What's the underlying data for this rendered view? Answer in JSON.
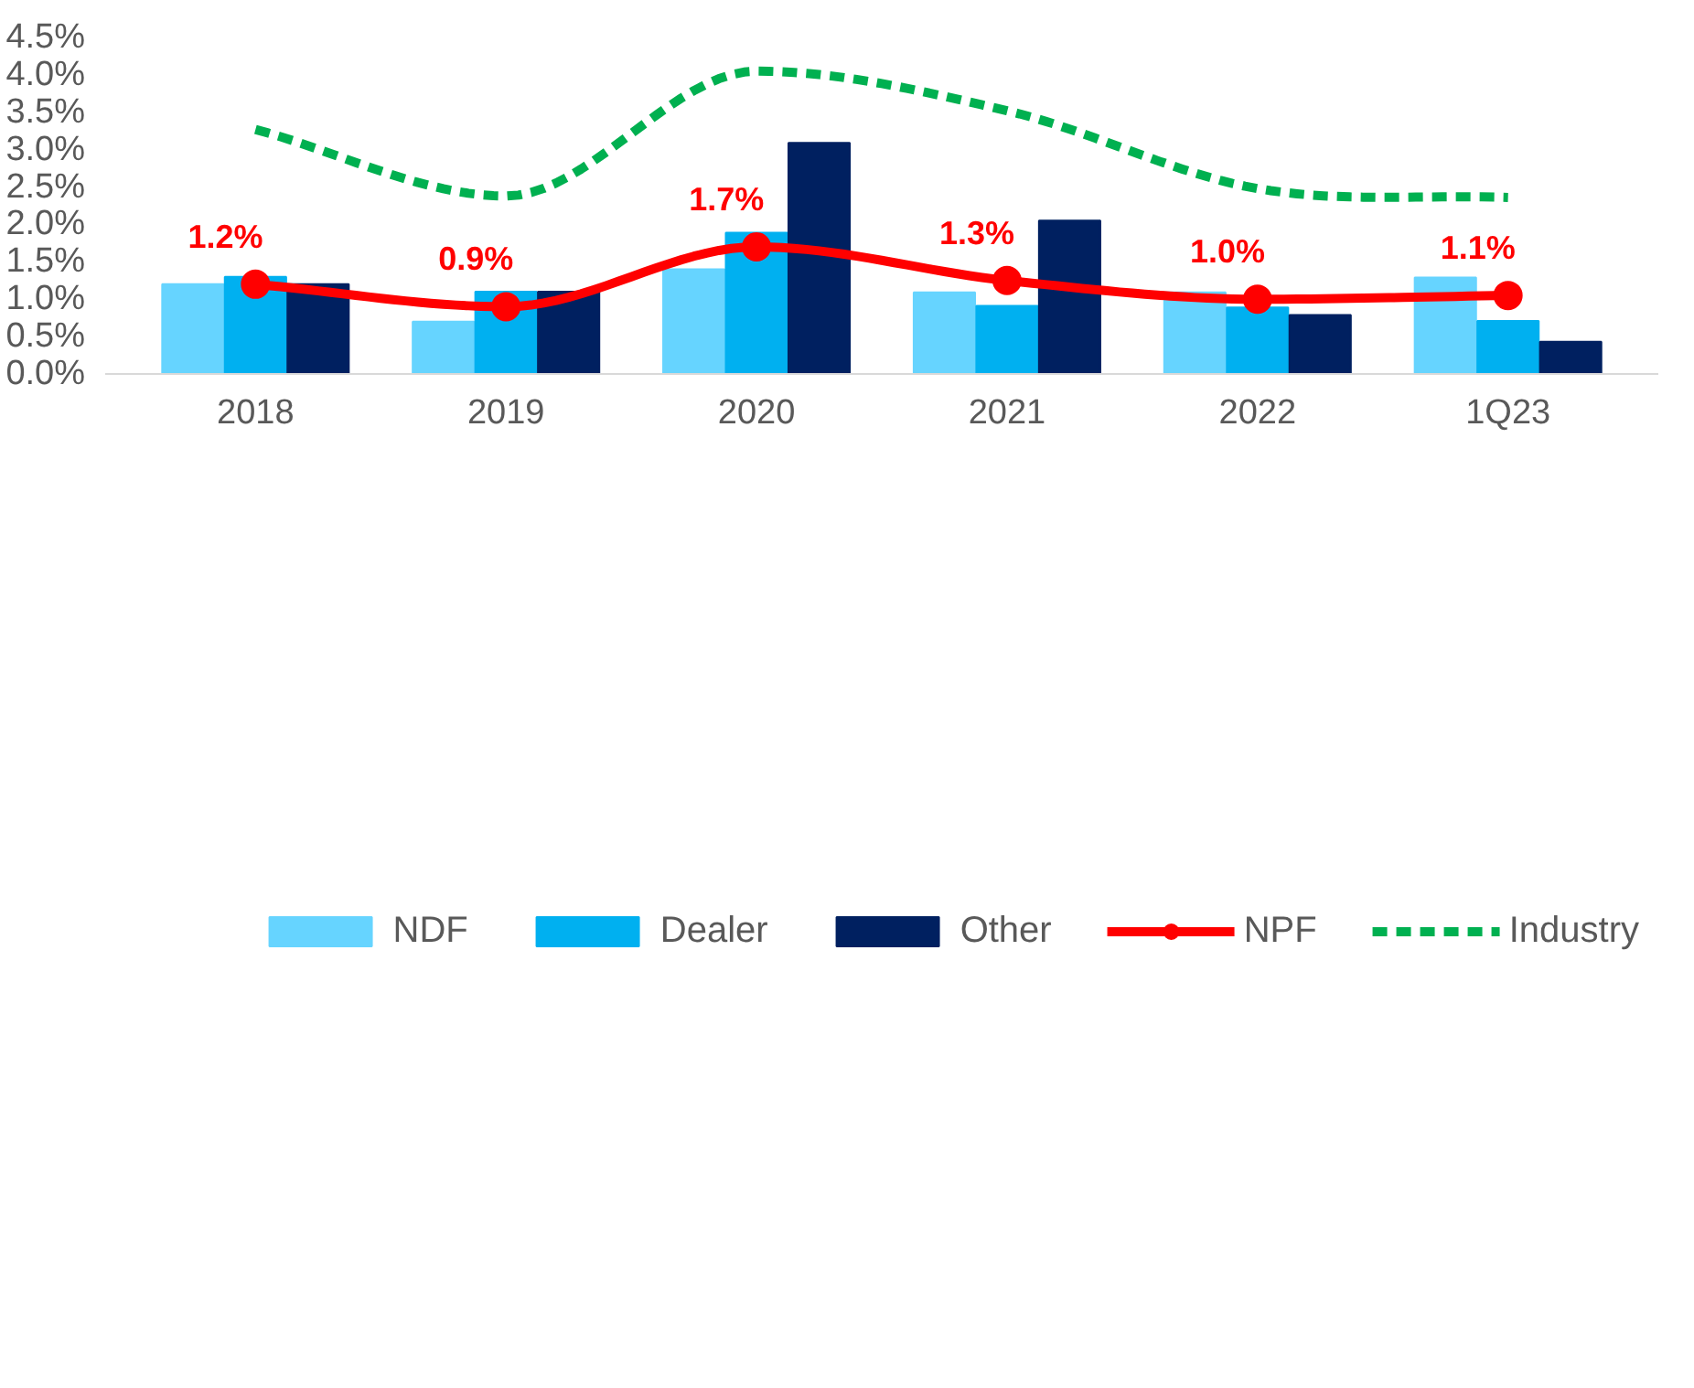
{
  "chart_data": {
    "type": "bar",
    "categories": [
      "2018",
      "2019",
      "2020",
      "2021",
      "2022",
      "1Q23"
    ],
    "ylim": [
      0,
      4.5
    ],
    "yticks": [
      {
        "value": 0,
        "label": "0.0%"
      },
      {
        "value": 0.5,
        "label": "0.5%"
      },
      {
        "value": 1,
        "label": "1.0%"
      },
      {
        "value": 1.5,
        "label": "1.5%"
      },
      {
        "value": 2,
        "label": "2.0%"
      },
      {
        "value": 2.5,
        "label": "2.5%"
      },
      {
        "value": 3,
        "label": "3.0%"
      },
      {
        "value": 3.5,
        "label": "3.5%"
      },
      {
        "value": 4,
        "label": "4.0%"
      },
      {
        "value": 4.5,
        "label": "4.5%"
      }
    ],
    "grid": false,
    "legend": "bottom",
    "series": [
      {
        "name": "NDF",
        "color": "#66d4ff",
        "values": [
          1.2,
          0.7,
          1.4,
          1.09,
          1.09,
          1.29
        ]
      },
      {
        "name": "Dealer",
        "color": "#00b0f0",
        "values": [
          1.3,
          1.1,
          1.89,
          0.91,
          0.89,
          0.71
        ]
      },
      {
        "name": "Other",
        "color": "#002060",
        "values": [
          1.2,
          1.1,
          3.09,
          2.05,
          0.79,
          0.43
        ]
      },
      {
        "name": "NPF",
        "type": "line",
        "color": "#ff0000",
        "marker": "circle",
        "line_style": "solid",
        "values": [
          1.2,
          0.9,
          1.7,
          1.25,
          1.0,
          1.05
        ],
        "value_labels": [
          "1.2%",
          "0.9%",
          "1.7%",
          "1.3%",
          "1.0%",
          "1.1%"
        ]
      },
      {
        "name": "Industry",
        "type": "line",
        "color": "#00b050",
        "marker": "none",
        "line_style": "dashed",
        "values": [
          3.27,
          2.38,
          4.05,
          3.52,
          2.48,
          2.36
        ]
      }
    ]
  }
}
